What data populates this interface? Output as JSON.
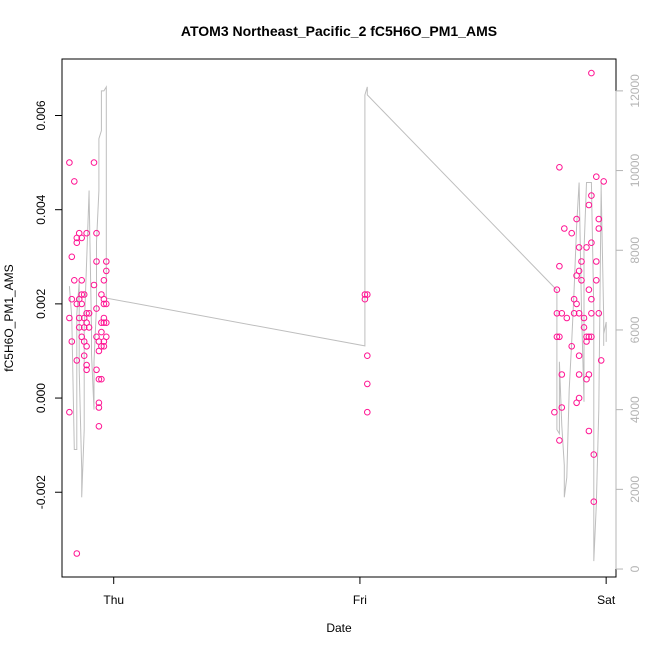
{
  "chart_data": {
    "type": "scatter",
    "title": "ATOM3 Northeast_Pacific_2 fC5H6O_PM1_AMS",
    "xlabel": "Date",
    "ylabel": "fC5H6O_PM1_AMS",
    "x_ticks": [
      "Thu",
      "Fri",
      "Sat"
    ],
    "xlim": [
      -0.21,
      2.04
    ],
    "ylim": [
      -0.0038,
      0.0072
    ],
    "y_ticks": [
      -0.002,
      0,
      0.002,
      0.004,
      0.006
    ],
    "y_tick_labels": [
      "-0.002",
      "0.000",
      "0.002",
      "0.004",
      "0.006"
    ],
    "y2lim": [
      -200,
      12800
    ],
    "y2_ticks": [
      0,
      2000,
      4000,
      6000,
      8000,
      10000,
      12000
    ],
    "y2_tick_labels": [
      "0",
      "2000",
      "4000",
      "6000",
      "8000",
      "10000",
      "12000"
    ],
    "grid": false,
    "colors": {
      "points": "#ff1493",
      "line": "#bebebe",
      "axis": "#000000",
      "right_axis": "#b4b4b4"
    },
    "series": [
      {
        "axis": "left",
        "style": "points",
        "points": [
          [
            -0.18,
            0.005
          ],
          [
            -0.18,
            -0.0003
          ],
          [
            -0.18,
            0.0017
          ],
          [
            -0.17,
            0.003
          ],
          [
            -0.17,
            0.0021
          ],
          [
            -0.17,
            0.0012
          ],
          [
            -0.16,
            0.0046
          ],
          [
            -0.16,
            0.0025
          ],
          [
            -0.15,
            0.0034
          ],
          [
            -0.15,
            0.0033
          ],
          [
            -0.15,
            0.002
          ],
          [
            -0.15,
            0.0008
          ],
          [
            -0.15,
            -0.0033
          ],
          [
            -0.14,
            0.0035
          ],
          [
            -0.14,
            0.0017
          ],
          [
            -0.14,
            0.0015
          ],
          [
            -0.14,
            0.0021
          ],
          [
            -0.13,
            0.0013
          ],
          [
            -0.13,
            0.0034
          ],
          [
            -0.13,
            0.0025
          ],
          [
            -0.13,
            0.002
          ],
          [
            -0.13,
            0.0022
          ],
          [
            -0.12,
            0.0022
          ],
          [
            -0.12,
            0.0015
          ],
          [
            -0.12,
            0.0012
          ],
          [
            -0.12,
            0.0017
          ],
          [
            -0.12,
            0.0009
          ],
          [
            -0.11,
            0.0035
          ],
          [
            -0.11,
            0.0007
          ],
          [
            -0.11,
            0.0018
          ],
          [
            -0.11,
            0.0016
          ],
          [
            -0.11,
            0.0011
          ],
          [
            -0.11,
            0.0006
          ],
          [
            -0.1,
            0.0015
          ],
          [
            -0.1,
            0.0018
          ],
          [
            -0.08,
            0.005
          ],
          [
            -0.08,
            0.0024
          ],
          [
            -0.07,
            0.0035
          ],
          [
            -0.07,
            0.0029
          ],
          [
            -0.07,
            0.0019
          ],
          [
            -0.07,
            0.0013
          ],
          [
            -0.07,
            0.0006
          ],
          [
            -0.06,
            -0.0001
          ],
          [
            -0.06,
            0.001
          ],
          [
            -0.06,
            0.0012
          ],
          [
            -0.06,
            0.0004
          ],
          [
            -0.06,
            -0.0006
          ],
          [
            -0.06,
            -0.0002
          ],
          [
            -0.05,
            0.0022
          ],
          [
            -0.05,
            0.0016
          ],
          [
            -0.05,
            0.0014
          ],
          [
            -0.05,
            0.0004
          ],
          [
            -0.05,
            0.0011
          ],
          [
            -0.04,
            0.002
          ],
          [
            -0.04,
            0.0016
          ],
          [
            -0.04,
            0.0025
          ],
          [
            -0.04,
            0.0011
          ],
          [
            -0.04,
            0.0021
          ],
          [
            -0.04,
            0.0012
          ],
          [
            -0.04,
            0.0017
          ],
          [
            -0.03,
            0.0027
          ],
          [
            -0.03,
            0.0029
          ],
          [
            -0.03,
            0.0013
          ],
          [
            -0.03,
            0.002
          ],
          [
            -0.03,
            0.0016
          ],
          [
            1.02,
            0.0022
          ],
          [
            1.02,
            0.0021
          ],
          [
            1.03,
            0.0022
          ],
          [
            1.03,
            0.0009
          ],
          [
            1.03,
            0.0003
          ],
          [
            1.03,
            -0.0003
          ],
          [
            1.79,
            -0.0003
          ],
          [
            1.8,
            0.0013
          ],
          [
            1.8,
            0.0018
          ],
          [
            1.8,
            0.0023
          ],
          [
            1.81,
            0.0049
          ],
          [
            1.81,
            0.0028
          ],
          [
            1.81,
            0.0013
          ],
          [
            1.81,
            -0.0009
          ],
          [
            1.82,
            -0.0002
          ],
          [
            1.82,
            0.0018
          ],
          [
            1.82,
            0.0005
          ],
          [
            1.83,
            0.0036
          ],
          [
            1.84,
            0.0017
          ],
          [
            1.86,
            0.0011
          ],
          [
            1.86,
            0.0035
          ],
          [
            1.87,
            0.0021
          ],
          [
            1.87,
            0.0018
          ],
          [
            1.88,
            -0.0001
          ],
          [
            1.88,
            0.0026
          ],
          [
            1.88,
            0.0038
          ],
          [
            1.88,
            0.002
          ],
          [
            1.89,
            0.0032
          ],
          [
            1.89,
            0.0005
          ],
          [
            1.89,
            0.0009
          ],
          [
            1.89,
            0.0
          ],
          [
            1.89,
            0.0027
          ],
          [
            1.89,
            0.0018
          ],
          [
            1.9,
            0.0029
          ],
          [
            1.9,
            0.0025
          ],
          [
            1.91,
            0.0015
          ],
          [
            1.91,
            0.0017
          ],
          [
            1.92,
            0.0004
          ],
          [
            1.92,
            0.0013
          ],
          [
            1.92,
            0.0012
          ],
          [
            1.92,
            0.0032
          ],
          [
            1.93,
            0.0041
          ],
          [
            1.93,
            -0.0007
          ],
          [
            1.93,
            0.0023
          ],
          [
            1.93,
            0.0013
          ],
          [
            1.93,
            0.0005
          ],
          [
            1.94,
            0.0069
          ],
          [
            1.94,
            0.0043
          ],
          [
            1.94,
            0.0033
          ],
          [
            1.94,
            0.0021
          ],
          [
            1.94,
            0.0018
          ],
          [
            1.94,
            0.0013
          ],
          [
            1.95,
            -0.0022
          ],
          [
            1.95,
            -0.0012
          ],
          [
            1.96,
            0.0047
          ],
          [
            1.96,
            0.0029
          ],
          [
            1.96,
            0.0025
          ],
          [
            1.97,
            0.0038
          ],
          [
            1.97,
            0.0036
          ],
          [
            1.97,
            0.0018
          ],
          [
            1.98,
            0.0008
          ],
          [
            1.99,
            0.0046
          ]
        ]
      },
      {
        "axis": "right",
        "style": "line",
        "points": [
          [
            -0.18,
            7100
          ],
          [
            -0.17,
            6300
          ],
          [
            -0.16,
            3000
          ],
          [
            -0.15,
            3000
          ],
          [
            -0.15,
            6400
          ],
          [
            -0.14,
            7200
          ],
          [
            -0.14,
            5000
          ],
          [
            -0.13,
            2500
          ],
          [
            -0.13,
            1800
          ],
          [
            -0.12,
            3500
          ],
          [
            -0.12,
            6000
          ],
          [
            -0.11,
            7700
          ],
          [
            -0.1,
            9500
          ],
          [
            -0.1,
            9400
          ],
          [
            -0.09,
            6000
          ],
          [
            -0.09,
            5400
          ],
          [
            -0.08,
            4000
          ],
          [
            -0.08,
            5200
          ],
          [
            -0.07,
            6600
          ],
          [
            -0.07,
            8200
          ],
          [
            -0.06,
            9500
          ],
          [
            -0.06,
            10800
          ],
          [
            -0.05,
            11000
          ],
          [
            -0.05,
            12000
          ],
          [
            -0.04,
            12000
          ],
          [
            -0.04,
            12000
          ],
          [
            -0.03,
            12100
          ],
          [
            -0.03,
            6800
          ],
          [
            1.02,
            5600
          ],
          [
            1.02,
            11900
          ],
          [
            1.03,
            12100
          ],
          [
            1.03,
            11900
          ],
          [
            1.8,
            7000
          ],
          [
            1.8,
            3500
          ],
          [
            1.81,
            3400
          ],
          [
            1.81,
            5200
          ],
          [
            1.82,
            3600
          ],
          [
            1.83,
            2600
          ],
          [
            1.83,
            1800
          ],
          [
            1.84,
            2300
          ],
          [
            1.85,
            4500
          ],
          [
            1.86,
            5700
          ],
          [
            1.87,
            7000
          ],
          [
            1.88,
            8600
          ],
          [
            1.89,
            9700
          ],
          [
            1.89,
            9700
          ],
          [
            1.9,
            6500
          ],
          [
            1.91,
            4200
          ],
          [
            1.91,
            8000
          ],
          [
            1.92,
            9700
          ],
          [
            1.93,
            9700
          ],
          [
            1.94,
            9700
          ],
          [
            1.95,
            6500
          ],
          [
            1.95,
            200
          ],
          [
            1.96,
            1600
          ],
          [
            1.97,
            4000
          ],
          [
            1.98,
            9700
          ],
          [
            1.98,
            9500
          ],
          [
            1.99,
            6300
          ],
          [
            1.99,
            5600
          ],
          [
            1.99,
            5900
          ],
          [
            2.0,
            6200
          ],
          [
            2.0,
            5700
          ]
        ]
      }
    ]
  }
}
